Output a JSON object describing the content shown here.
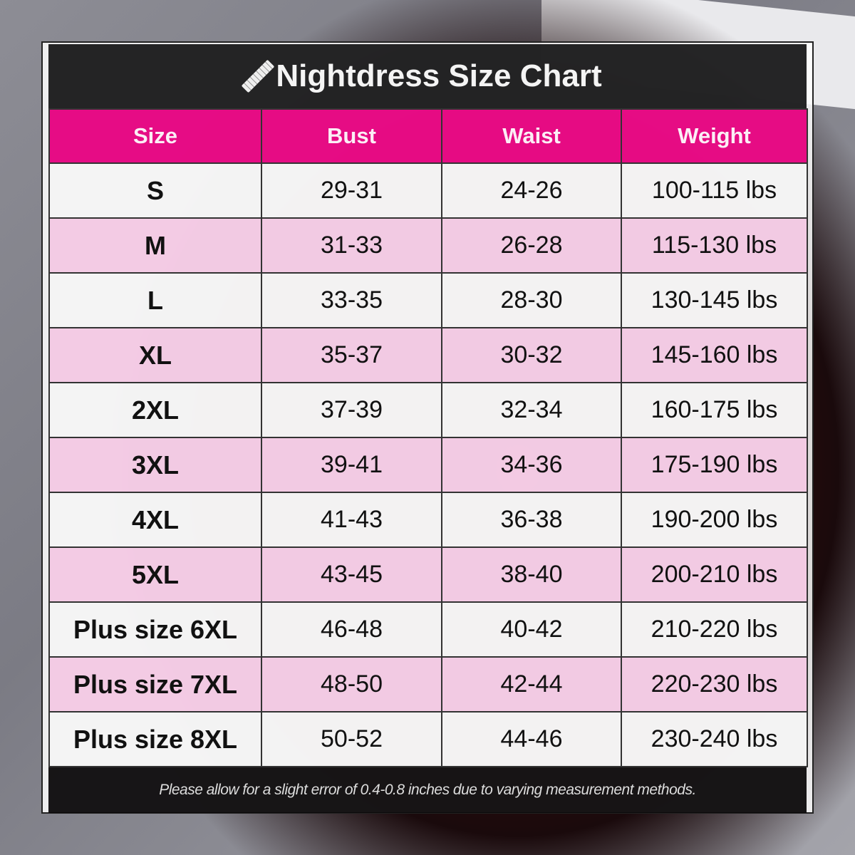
{
  "title": "Nightdress Size Chart",
  "title_icon": "ruler-icon",
  "colors": {
    "header": "#e6007e",
    "row_alt": "#f3c8e3",
    "row": "#f4f4f4",
    "band": "#141416"
  },
  "chart_data": {
    "type": "table",
    "title": "Nightdress Size Chart",
    "columns": [
      "Size",
      "Bust",
      "Waist",
      "Weight"
    ],
    "rows": [
      [
        "S",
        "29-31",
        "24-26",
        "100-115 lbs"
      ],
      [
        "M",
        "31-33",
        "26-28",
        "115-130 lbs"
      ],
      [
        "L",
        "33-35",
        "28-30",
        "130-145 lbs"
      ],
      [
        "XL",
        "35-37",
        "30-32",
        "145-160 lbs"
      ],
      [
        "2XL",
        "37-39",
        "32-34",
        "160-175 lbs"
      ],
      [
        "3XL",
        "39-41",
        "34-36",
        "175-190 lbs"
      ],
      [
        "4XL",
        "41-43",
        "36-38",
        "190-200 lbs"
      ],
      [
        "5XL",
        "43-45",
        "38-40",
        "200-210 lbs"
      ],
      [
        "Plus size 6XL",
        "46-48",
        "40-42",
        "210-220 lbs"
      ],
      [
        "Plus size 7XL",
        "48-50",
        "42-44",
        "220-230 lbs"
      ],
      [
        "Plus size 8XL",
        "50-52",
        "44-46",
        "230-240 lbs"
      ]
    ]
  },
  "footer": "Please allow for a slight error of 0.4-0.8 inches due to varying measurement methods."
}
